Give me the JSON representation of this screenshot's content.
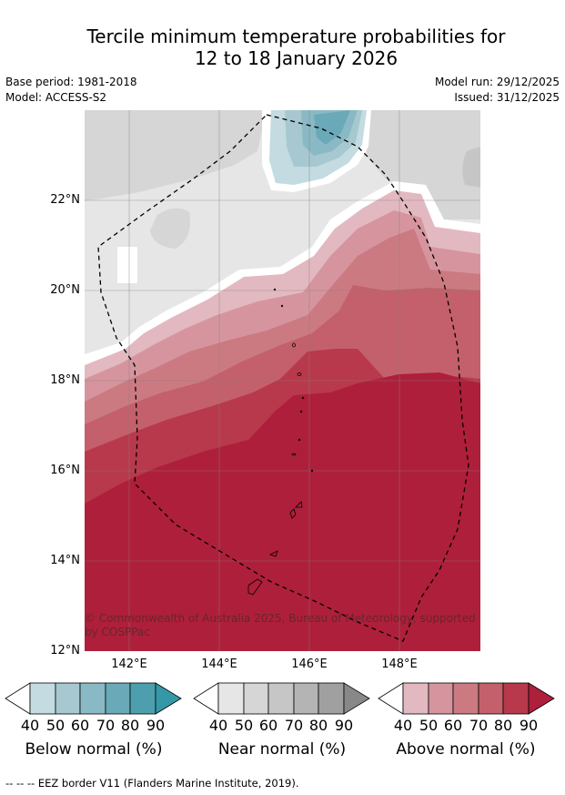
{
  "title_line1": "Tercile minimum temperature probabilities for",
  "title_line2": "12 to 18 January 2026",
  "base_period": "Base period: 1981-2018",
  "model": "Model: ACCESS-S2",
  "model_run": "Model run: 29/12/2025",
  "issued": "Issued: 31/12/2025",
  "lat_labels": [
    "22°N",
    "20°N",
    "18°N",
    "16°N",
    "14°N",
    "12°N"
  ],
  "lon_labels": [
    "142°E",
    "144°E",
    "146°E",
    "148°E"
  ],
  "copyright": "© Commonwealth of Australia 2025, Bureau of Meteorology, supported by COSPPac",
  "legends": {
    "below": {
      "title": "Below normal (%)",
      "ticks": [
        "40",
        "50",
        "60",
        "70",
        "80",
        "90"
      ],
      "colors": [
        "#c3dbe1",
        "#a7c8d0",
        "#89b9c4",
        "#6aa9b7",
        "#4d9fae",
        "#3598a8"
      ]
    },
    "near": {
      "title": "Near normal (%)",
      "ticks": [
        "40",
        "50",
        "60",
        "70",
        "80",
        "90"
      ],
      "colors": [
        "#e6e6e6",
        "#d6d6d6",
        "#c6c6c6",
        "#b4b4b4",
        "#a0a0a0",
        "#888888"
      ]
    },
    "above": {
      "title": "Above normal (%)",
      "ticks": [
        "40",
        "50",
        "60",
        "70",
        "80",
        "90"
      ],
      "colors": [
        "#e3b9c1",
        "#d6959e",
        "#cc7a82",
        "#c4606b",
        "#b8394b",
        "#ae1f3b"
      ]
    }
  },
  "footnote": "-- -- -- EEZ border V11 (Flanders Marine Institute, 2019)."
}
